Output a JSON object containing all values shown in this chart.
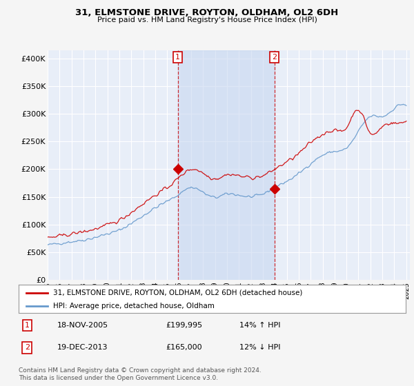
{
  "title": "31, ELMSTONE DRIVE, ROYTON, OLDHAM, OL2 6DH",
  "subtitle": "Price paid vs. HM Land Registry's House Price Index (HPI)",
  "ylabel_ticks": [
    "£0",
    "£50K",
    "£100K",
    "£150K",
    "£200K",
    "£250K",
    "£300K",
    "£350K",
    "£400K"
  ],
  "ytick_values": [
    0,
    50000,
    100000,
    150000,
    200000,
    250000,
    300000,
    350000,
    400000
  ],
  "ylim": [
    0,
    415000
  ],
  "xlim_start": 1995.0,
  "xlim_end": 2025.3,
  "background_color": "#f5f5f5",
  "plot_bg_color": "#e8eef8",
  "grid_color": "#ffffff",
  "red_color": "#cc0000",
  "blue_color": "#6699cc",
  "shade_color": "#c8d8f0",
  "transaction1_x": 2005.88,
  "transaction1_y": 199995,
  "transaction2_x": 2013.97,
  "transaction2_y": 165000,
  "vline1_x": 2005.88,
  "vline2_x": 2013.97,
  "legend_house": "31, ELMSTONE DRIVE, ROYTON, OLDHAM, OL2 6DH (detached house)",
  "legend_hpi": "HPI: Average price, detached house, Oldham",
  "annotation1_num": "1",
  "annotation1_date": "18-NOV-2005",
  "annotation1_price": "£199,995",
  "annotation1_hpi": "14% ↑ HPI",
  "annotation2_num": "2",
  "annotation2_date": "19-DEC-2013",
  "annotation2_price": "£165,000",
  "annotation2_hpi": "12% ↓ HPI",
  "footer": "Contains HM Land Registry data © Crown copyright and database right 2024.\nThis data is licensed under the Open Government Licence v3.0."
}
